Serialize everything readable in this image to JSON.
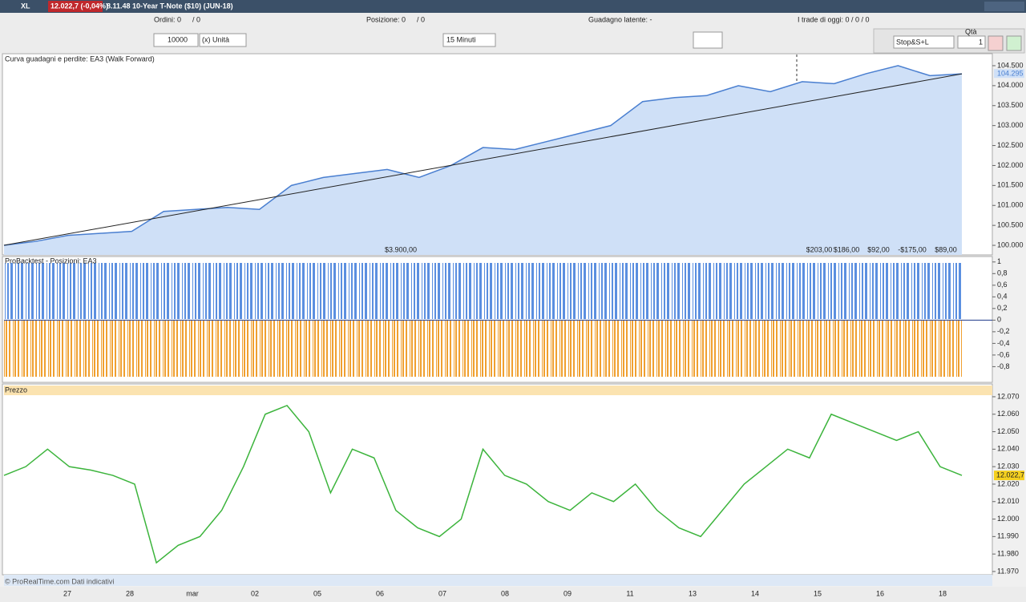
{
  "titlebar": {
    "symbol": "XL",
    "price_badge": "12.022,7 (-0,04%)",
    "instrument": "8.11.48 10-Year T-Note ($10) (JUN-18)"
  },
  "toolbar": {
    "ordini": "Ordini: 0",
    "ordini_b": "/ 0",
    "posizione": "Posizione: 0",
    "posizione_b": "/ 0",
    "guadagno": "Guadagno latente: -",
    "trade_oggi": "I trade di oggi: 0 / 0 / 0",
    "qty_input": "10000",
    "unit": "(x) Unità",
    "timeframe": "15 Minuti",
    "qta_label": "Qtà",
    "order_type": "Stop&S+L",
    "qta_value": "1"
  },
  "equity_panel": {
    "title": "Curva guadagni e perdite: EA3 (Walk Forward)",
    "values": [
      100.0,
      100.1,
      100.25,
      100.3,
      100.35,
      100.85,
      100.9,
      100.95,
      100.9,
      101.5,
      101.7,
      101.8,
      101.9,
      101.7,
      102.0,
      102.45,
      102.4,
      102.6,
      102.8,
      103.0,
      103.6,
      103.7,
      103.75,
      104.0,
      103.85,
      104.1,
      104.05,
      104.3,
      104.5,
      104.25,
      104.295
    ],
    "trend": [
      100.0,
      104.295
    ],
    "ylim": [
      99.76,
      104.74
    ],
    "yticks": [
      {
        "value": 104.5,
        "label": "104.500"
      },
      {
        "value": 104.0,
        "label": "104.000"
      },
      {
        "value": 103.5,
        "label": "103.500"
      },
      {
        "value": 103.0,
        "label": "103.000"
      },
      {
        "value": 102.5,
        "label": "102.500"
      },
      {
        "value": 102.0,
        "label": "102.000"
      },
      {
        "value": 101.5,
        "label": "101.500"
      },
      {
        "value": 101.0,
        "label": "101.000"
      },
      {
        "value": 100.5,
        "label": "100.500"
      },
      {
        "value": 100.0,
        "label": "100.000"
      }
    ],
    "current_label": "104.295",
    "footer_labels": [
      "$3.900,00",
      "$203,00",
      "$186,00",
      "$92,00",
      "-$175,00",
      "$89,00"
    ]
  },
  "positions_panel": {
    "title": "ProBacktest - Posizioni: EA3",
    "ylim": [
      -1.07,
      1.08
    ],
    "yticks": [
      1,
      {
        "value": 0.8,
        "label": "0,8"
      },
      {
        "value": 0.6,
        "label": "0,6"
      },
      {
        "value": 0.4,
        "label": "0,4"
      },
      {
        "value": 0.2,
        "label": "0,2"
      },
      0,
      {
        "value": -0.2,
        "label": "-0,2"
      },
      {
        "value": -0.4,
        "label": "-0,4"
      },
      {
        "value": -0.6,
        "label": "-0,6"
      },
      {
        "value": -0.8,
        "label": "-0,8"
      }
    ]
  },
  "price_panel": {
    "title": "Prezzo",
    "values": [
      12.025,
      12.03,
      12.04,
      12.03,
      12.028,
      12.025,
      12.02,
      11.975,
      11.985,
      11.99,
      12.005,
      12.03,
      12.06,
      12.065,
      12.05,
      12.015,
      12.04,
      12.035,
      12.005,
      11.995,
      11.99,
      12.0,
      12.04,
      12.025,
      12.02,
      12.01,
      12.005,
      12.015,
      12.01,
      12.02,
      12.005,
      11.995,
      11.99,
      12.005,
      12.02,
      12.03,
      12.04,
      12.035,
      12.06,
      12.055,
      12.05,
      12.045,
      12.05,
      12.03,
      12.025
    ],
    "ylim": [
      11.9686,
      12.0764
    ],
    "yticks": [
      {
        "value": 12.07,
        "label": "12.070"
      },
      {
        "value": 12.06,
        "label": "12.060"
      },
      {
        "value": 12.05,
        "label": "12.050"
      },
      {
        "value": 12.04,
        "label": "12.040"
      },
      {
        "value": 12.03,
        "label": "12.030"
      },
      {
        "value": 12.02,
        "label": "12.020"
      },
      {
        "value": 12.01,
        "label": "12.010"
      },
      {
        "value": 12.0,
        "label": "12.000"
      },
      {
        "value": 11.99,
        "label": "11.990"
      },
      {
        "value": 11.98,
        "label": "11.980"
      },
      {
        "value": 11.97,
        "label": "11.970"
      }
    ],
    "current_label": "12.022,7"
  },
  "x_axis": {
    "categories": [
      "27",
      "28",
      "mar",
      "02",
      "05",
      "06",
      "07",
      "08",
      "09",
      "11",
      "13",
      "14",
      "15",
      "16",
      "18"
    ]
  },
  "footer": "© ProRealTime.com Dati indicativi"
}
